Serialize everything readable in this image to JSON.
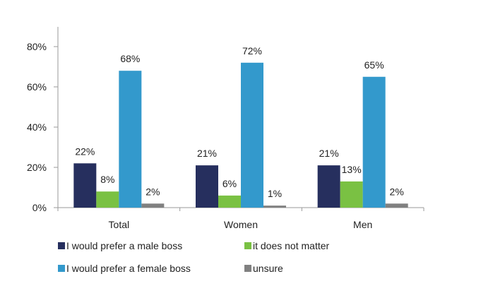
{
  "chart_data": {
    "type": "bar",
    "categories": [
      "Total",
      "Women",
      "Men"
    ],
    "series": [
      {
        "name": "I would prefer a male boss",
        "values": [
          22,
          21,
          21
        ],
        "color": "#262f5e"
      },
      {
        "name": "it does not matter",
        "values": [
          8,
          6,
          13
        ],
        "color": "#7ac143"
      },
      {
        "name": "I would prefer a female boss",
        "values": [
          68,
          72,
          65
        ],
        "color": "#3399cc"
      },
      {
        "name": "unsure",
        "values": [
          2,
          1,
          2
        ],
        "color": "#808080"
      }
    ],
    "value_labels": [
      [
        "22%",
        "21%",
        "21%"
      ],
      [
        "8%",
        "6%",
        "13%"
      ],
      [
        "68%",
        "72%",
        "65%"
      ],
      [
        "2%",
        "1%",
        "2%"
      ]
    ],
    "y_ticks": [
      "0%",
      "20%",
      "40%",
      "60%",
      "80%"
    ],
    "ylim": [
      0,
      80
    ],
    "grid": false,
    "legend_position": "bottom"
  }
}
